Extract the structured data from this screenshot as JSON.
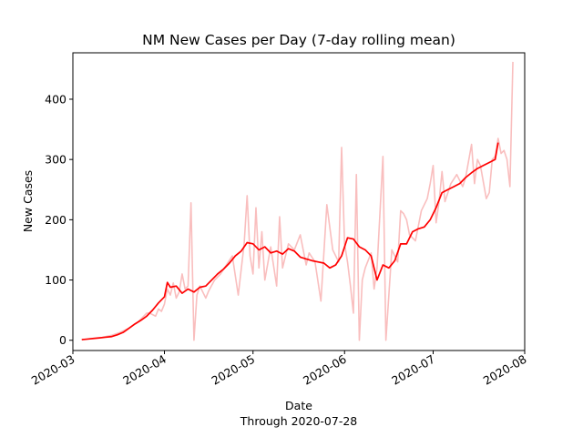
{
  "chart_data": {
    "type": "line",
    "title": "NM New Cases per Day (7-day rolling mean)",
    "xlabel": "Date",
    "xlabel_sub": "Through 2020-07-28",
    "ylabel": "New Cases",
    "xlim": [
      "2020-03-01",
      "2020-08-01"
    ],
    "ylim": [
      -17,
      477
    ],
    "x_ticks": [
      "2020-03-01",
      "2020-04-01",
      "2020-05-01",
      "2020-06-01",
      "2020-07-01",
      "2020-08-01"
    ],
    "x_tick_labels": [
      "2020-03",
      "2020-04",
      "2020-05",
      "2020-06",
      "2020-07",
      "2020-08"
    ],
    "y_ticks": [
      0,
      100,
      200,
      300,
      400
    ],
    "y_tick_labels": [
      "0",
      "100",
      "200",
      "300",
      "400"
    ],
    "grid": false,
    "series": [
      {
        "name": "",
        "color": "#f7a8a8",
        "opacity": 0.75,
        "x": [
          "2020-03-11",
          "2020-03-14",
          "2020-03-17",
          "2020-03-20",
          "2020-03-23",
          "2020-03-26",
          "2020-03-27",
          "2020-03-29",
          "2020-03-30",
          "2020-03-31",
          "2020-04-01",
          "2020-04-02",
          "2020-04-03",
          "2020-04-04",
          "2020-04-05",
          "2020-04-06",
          "2020-04-07",
          "2020-04-08",
          "2020-04-09",
          "2020-04-10",
          "2020-04-11",
          "2020-04-12",
          "2020-04-13",
          "2020-04-14",
          "2020-04-15",
          "2020-04-16",
          "2020-04-18",
          "2020-04-20",
          "2020-04-22",
          "2020-04-24",
          "2020-04-26",
          "2020-04-28",
          "2020-04-29",
          "2020-04-30",
          "2020-05-01",
          "2020-05-02",
          "2020-05-03",
          "2020-05-04",
          "2020-05-05",
          "2020-05-07",
          "2020-05-09",
          "2020-05-10",
          "2020-05-11",
          "2020-05-13",
          "2020-05-15",
          "2020-05-17",
          "2020-05-19",
          "2020-05-20",
          "2020-05-22",
          "2020-05-24",
          "2020-05-26",
          "2020-05-28",
          "2020-05-30",
          "2020-05-31",
          "2020-06-01",
          "2020-06-02",
          "2020-06-03",
          "2020-06-04",
          "2020-06-05",
          "2020-06-06",
          "2020-06-07",
          "2020-06-08",
          "2020-06-10",
          "2020-06-11",
          "2020-06-12",
          "2020-06-14",
          "2020-06-15",
          "2020-06-17",
          "2020-06-19",
          "2020-06-20",
          "2020-06-21",
          "2020-06-22",
          "2020-06-23",
          "2020-06-25",
          "2020-06-27",
          "2020-06-29",
          "2020-06-30",
          "2020-07-01",
          "2020-07-02",
          "2020-07-03",
          "2020-07-04",
          "2020-07-05",
          "2020-07-07",
          "2020-07-09",
          "2020-07-11",
          "2020-07-12",
          "2020-07-14",
          "2020-07-15",
          "2020-07-16",
          "2020-07-17",
          "2020-07-19",
          "2020-07-20",
          "2020-07-21",
          "2020-07-22",
          "2020-07-23",
          "2020-07-24",
          "2020-07-25",
          "2020-07-26",
          "2020-07-27",
          "2020-07-28"
        ],
        "y": [
          5,
          8,
          13,
          20,
          30,
          45,
          45,
          40,
          52,
          48,
          60,
          85,
          75,
          95,
          70,
          80,
          110,
          85,
          90,
          228,
          0,
          75,
          90,
          80,
          70,
          82,
          100,
          110,
          125,
          140,
          75,
          160,
          240,
          140,
          110,
          220,
          120,
          180,
          100,
          155,
          90,
          205,
          120,
          160,
          150,
          175,
          125,
          145,
          130,
          65,
          225,
          150,
          130,
          320,
          160,
          130,
          90,
          45,
          275,
          0,
          100,
          120,
          145,
          85,
          120,
          305,
          0,
          150,
          130,
          215,
          210,
          200,
          175,
          165,
          215,
          235,
          260,
          290,
          195,
          230,
          280,
          230,
          260,
          275,
          255,
          270,
          325,
          260,
          300,
          290,
          235,
          245,
          300,
          305,
          335,
          310,
          315,
          300,
          255,
          462
        ]
      },
      {
        "name": "",
        "color": "#ff0000",
        "x": [
          "2020-03-04",
          "2020-03-06",
          "2020-03-08",
          "2020-03-10",
          "2020-03-12",
          "2020-03-14",
          "2020-03-16",
          "2020-03-18",
          "2020-03-20",
          "2020-03-22",
          "2020-03-24",
          "2020-03-26",
          "2020-03-28",
          "2020-03-30",
          "2020-04-01",
          "2020-04-02",
          "2020-04-03",
          "2020-04-05",
          "2020-04-07",
          "2020-04-09",
          "2020-04-11",
          "2020-04-13",
          "2020-04-15",
          "2020-04-17",
          "2020-04-19",
          "2020-04-21",
          "2020-04-23",
          "2020-04-25",
          "2020-04-27",
          "2020-04-29",
          "2020-05-01",
          "2020-05-03",
          "2020-05-05",
          "2020-05-07",
          "2020-05-09",
          "2020-05-11",
          "2020-05-13",
          "2020-05-15",
          "2020-05-17",
          "2020-05-19",
          "2020-05-21",
          "2020-05-23",
          "2020-05-25",
          "2020-05-27",
          "2020-05-29",
          "2020-05-31",
          "2020-06-02",
          "2020-06-04",
          "2020-06-06",
          "2020-06-08",
          "2020-06-10",
          "2020-06-12",
          "2020-06-14",
          "2020-06-16",
          "2020-06-18",
          "2020-06-20",
          "2020-06-22",
          "2020-06-24",
          "2020-06-26",
          "2020-06-28",
          "2020-06-30",
          "2020-07-02",
          "2020-07-04",
          "2020-07-06",
          "2020-07-08",
          "2020-07-10",
          "2020-07-12",
          "2020-07-14",
          "2020-07-16",
          "2020-07-18",
          "2020-07-20",
          "2020-07-22",
          "2020-07-23"
        ],
        "y": [
          1,
          2,
          3,
          4,
          5,
          6,
          9,
          13,
          20,
          27,
          33,
          40,
          50,
          62,
          72,
          96,
          88,
          90,
          78,
          85,
          80,
          88,
          90,
          100,
          110,
          118,
          128,
          140,
          148,
          162,
          160,
          150,
          155,
          145,
          148,
          143,
          152,
          148,
          138,
          135,
          132,
          130,
          128,
          120,
          125,
          140,
          170,
          168,
          155,
          150,
          140,
          100,
          125,
          120,
          132,
          160,
          160,
          180,
          185,
          188,
          200,
          220,
          245,
          250,
          255,
          260,
          270,
          278,
          285,
          290,
          295,
          300,
          328
        ]
      }
    ]
  }
}
